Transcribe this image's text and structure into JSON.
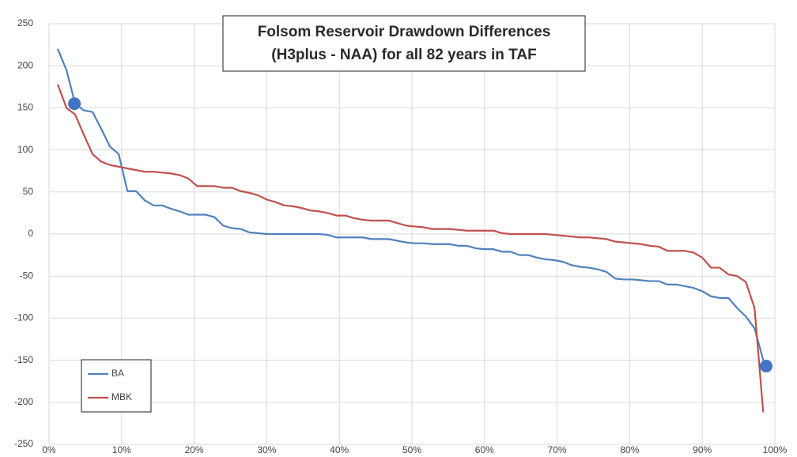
{
  "chart_data": {
    "type": "line",
    "title_lines": [
      "Folsom Reservoir Drawdown Differences",
      "(H3plus - NAA) for all 82 years in TAF"
    ],
    "x": [
      1.2,
      2.4,
      3.6,
      4.8,
      6.0,
      7.2,
      8.4,
      9.6,
      10.8,
      12.0,
      13.2,
      14.4,
      15.6,
      16.8,
      18.0,
      19.2,
      20.4,
      21.6,
      22.8,
      24.0,
      25.2,
      26.4,
      27.6,
      28.8,
      30.0,
      31.2,
      32.4,
      33.6,
      34.8,
      36.0,
      37.2,
      38.4,
      39.6,
      40.8,
      42.0,
      43.2,
      44.4,
      45.6,
      46.8,
      48.0,
      49.2,
      50.4,
      51.6,
      52.8,
      54.0,
      55.2,
      56.4,
      57.6,
      58.8,
      60.0,
      61.2,
      62.4,
      63.6,
      64.8,
      66.0,
      67.2,
      68.4,
      69.6,
      70.8,
      72.0,
      73.2,
      74.4,
      75.6,
      76.8,
      78.0,
      79.2,
      80.4,
      81.6,
      82.8,
      84.0,
      85.2,
      86.4,
      87.6,
      88.8,
      90.0,
      91.2,
      92.4,
      93.6,
      94.8,
      96.0,
      97.2,
      98.4
    ],
    "series": [
      {
        "name": "BA",
        "color": "#4f81bd",
        "values": [
          220,
          195,
          155,
          147,
          145,
          125,
          104,
          95,
          51,
          51,
          40,
          34,
          34,
          30,
          27,
          23,
          23,
          23,
          20,
          10,
          7,
          6,
          2,
          1,
          0,
          0,
          0,
          0,
          0,
          0,
          0,
          -1,
          -4,
          -4,
          -4,
          -4,
          -6,
          -6,
          -6,
          -8,
          -10,
          -11,
          -11,
          -12,
          -12,
          -12,
          -14,
          -14,
          -17,
          -18,
          -18,
          -21,
          -21,
          -25,
          -25,
          -28,
          -30,
          -31,
          -33,
          -37,
          -39,
          -40,
          -42,
          -45,
          -53,
          -54,
          -54,
          -55,
          -56,
          -56,
          -60,
          -60,
          -62,
          -64,
          -68,
          -74,
          -76,
          -76,
          -88,
          -98,
          -112,
          -150
        ]
      },
      {
        "name": "MBK",
        "color": "#c0504d",
        "values": [
          178,
          150,
          142,
          118,
          95,
          86,
          82,
          80,
          78,
          76,
          74,
          74,
          73,
          72,
          70,
          66,
          57,
          57,
          57,
          55,
          55,
          51,
          49,
          46,
          41,
          38,
          34,
          33,
          31,
          28,
          27,
          25,
          22,
          22,
          19,
          17,
          16,
          16,
          16,
          13,
          10,
          9,
          8,
          6,
          6,
          6,
          5,
          4,
          4,
          4,
          4,
          1,
          0,
          0,
          0,
          0,
          0,
          -1,
          -2,
          -3,
          -4,
          -4,
          -5,
          -6,
          -9,
          -10,
          -11,
          -12,
          -14,
          -15,
          -20,
          -20,
          -20,
          -22,
          -28,
          -40,
          -40,
          -48,
          -50,
          -57,
          -88,
          -212
        ]
      }
    ],
    "highlights": [
      {
        "x": 3.5,
        "y": 155
      },
      {
        "x": 98.8,
        "y": -157
      }
    ],
    "highlight_color": "#4472c4",
    "xlim": [
      0,
      100
    ],
    "xticks": [
      {
        "value": 0,
        "label": "0%"
      },
      {
        "value": 10,
        "label": "10%"
      },
      {
        "value": 20,
        "label": "20%"
      },
      {
        "value": 30,
        "label": "30%"
      },
      {
        "value": 40,
        "label": "40%"
      },
      {
        "value": 50,
        "label": "50%"
      },
      {
        "value": 60,
        "label": "60%"
      },
      {
        "value": 70,
        "label": "70%"
      },
      {
        "value": 80,
        "label": "80%"
      },
      {
        "value": 90,
        "label": "90%"
      },
      {
        "value": 100,
        "label": "100%"
      }
    ],
    "ylim": [
      -250,
      250
    ],
    "yticks": [
      -250,
      -200,
      -150,
      -100,
      -50,
      0,
      50,
      100,
      150,
      200,
      250
    ],
    "grid": true,
    "legend": "lower left"
  }
}
